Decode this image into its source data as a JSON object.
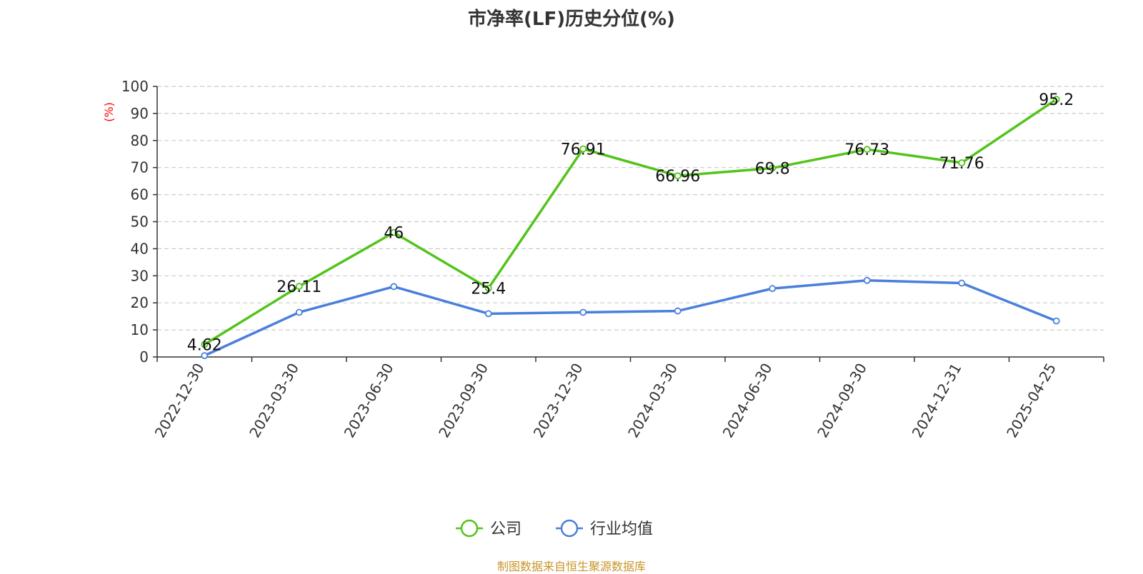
{
  "chart_data": {
    "type": "line",
    "title": "市净率(LF)历史分位(%)",
    "ylabel": "(%)",
    "xlabel": "",
    "ylim": [
      0,
      100
    ],
    "yticks": [
      0,
      10,
      20,
      30,
      40,
      50,
      60,
      70,
      80,
      90,
      100
    ],
    "grid": true,
    "legend_position": "bottom-center",
    "categories": [
      "2022-12-30",
      "2023-03-30",
      "2023-06-30",
      "2023-09-30",
      "2023-12-30",
      "2024-03-30",
      "2024-06-30",
      "2024-09-30",
      "2024-12-31",
      "2025-04-25"
    ],
    "series": [
      {
        "name": "公司",
        "color": "#52c41a",
        "values": [
          4.62,
          26.11,
          46,
          25.4,
          76.91,
          66.96,
          69.8,
          76.73,
          71.76,
          95.2
        ],
        "labels": [
          "4.62",
          "26.11",
          "46",
          "25.4",
          "76.91",
          "66.96",
          "69.8",
          "76.73",
          "71.76",
          "95.2"
        ],
        "show_labels": true
      },
      {
        "name": "行业均值",
        "color": "#4a7fdc",
        "values": [
          0.5,
          16.5,
          26,
          16,
          16.5,
          17,
          25.3,
          28.3,
          27.3,
          13.3
        ],
        "show_labels": false
      }
    ]
  },
  "footer": {
    "source": "制图数据来自恒生聚源数据库"
  }
}
